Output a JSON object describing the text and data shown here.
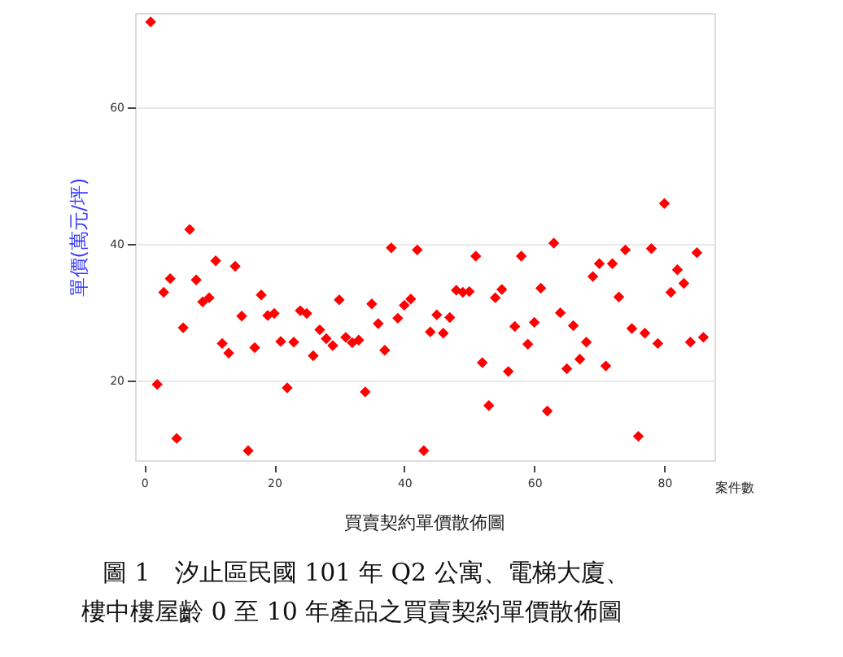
{
  "chart_data": {
    "type": "scatter",
    "title": "買賣契約單價散佈圖",
    "xlabel": "案件數",
    "ylabel": "單價(萬元/坪)",
    "annotations": [
      "圖 1　汐止區民國 101 年 Q2 公寓、電梯大廈、",
      "樓中樓屋齡 0 至 10 年產品之買賣契約單價散佈圖"
    ],
    "x": [
      1,
      2,
      3,
      4,
      5,
      6,
      7,
      8,
      9,
      10,
      11,
      12,
      13,
      14,
      15,
      16,
      17,
      18,
      19,
      20,
      21,
      22,
      23,
      24,
      25,
      26,
      27,
      28,
      29,
      30,
      31,
      32,
      33,
      34,
      35,
      36,
      37,
      38,
      39,
      40,
      41,
      42,
      43,
      44,
      45,
      46,
      47,
      48,
      49,
      50,
      51,
      52,
      53,
      54,
      55,
      56,
      57,
      58,
      59,
      60,
      61,
      62,
      63,
      64,
      65,
      66,
      67,
      68,
      69,
      70,
      71,
      72,
      73,
      74,
      75,
      76,
      77,
      78,
      79,
      80,
      81,
      82,
      83,
      84,
      85,
      86
    ],
    "series": [
      {
        "color": "#ff0000",
        "values": [
          72.5,
          19.4,
          32.9,
          34.9,
          11.5,
          27.7,
          42.1,
          34.7,
          31.5,
          32.1,
          37.5,
          25.4,
          24.0,
          36.7,
          29.4,
          9.7,
          24.8,
          32.5,
          29.5,
          29.8,
          25.7,
          18.9,
          25.6,
          30.2,
          29.8,
          23.6,
          27.4,
          26.1,
          25.1,
          31.8,
          26.3,
          25.5,
          25.9,
          18.3,
          31.2,
          28.3,
          24.4,
          39.4,
          29.1,
          31.0,
          31.9,
          39.1,
          9.7,
          27.1,
          29.6,
          26.9,
          29.2,
          33.2,
          32.9,
          33.0,
          38.2,
          22.6,
          16.3,
          32.1,
          33.3,
          21.3,
          27.9,
          38.2,
          25.3,
          28.5,
          33.5,
          15.5,
          40.1,
          29.9,
          21.7,
          28.0,
          23.1,
          25.6,
          35.2,
          37.1,
          22.1,
          37.1,
          32.2,
          39.1,
          27.6,
          11.8,
          26.9,
          39.3,
          25.4,
          45.9,
          32.9,
          36.2,
          34.2,
          25.6,
          38.7,
          26.3
        ]
      }
    ],
    "xlim": [
      -1.4,
      87.7
    ],
    "ylim": [
      8.3,
      73.8
    ],
    "xticks": [
      0,
      20,
      40,
      60,
      80
    ],
    "yticks": [
      20,
      40,
      60
    ],
    "grid": "y",
    "marker": "diamond"
  }
}
